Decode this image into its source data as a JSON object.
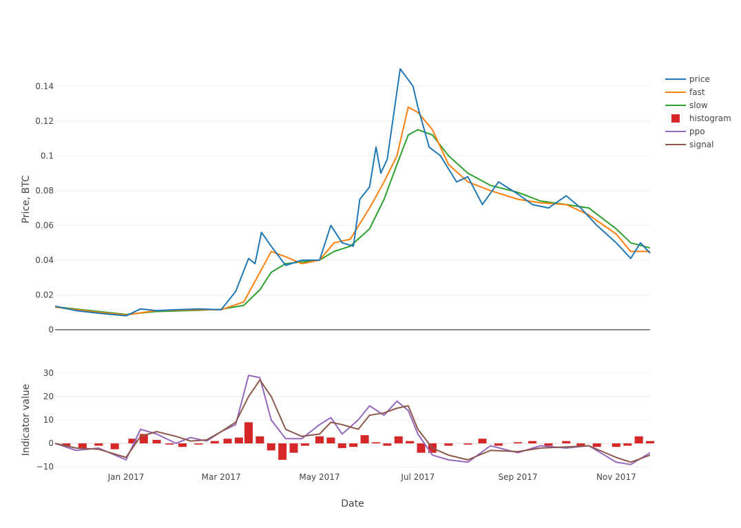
{
  "chart_data": [
    {
      "panel": "price",
      "type": "line",
      "xlabel": "",
      "ylabel": "Price, BTC",
      "ylim": [
        0,
        0.15
      ],
      "y_ticks": [
        0,
        0.02,
        0.04,
        0.06,
        0.08,
        0.1,
        0.12,
        0.14
      ],
      "y_tick_labels": [
        "0",
        "0.02",
        "0.04",
        "0.06",
        "0.08",
        "0.1",
        "0.12",
        "0.14"
      ],
      "grid": true,
      "series": [
        {
          "name": "price",
          "color": "#1f77b4",
          "x": [
            "2016-11-18",
            "2016-12-01",
            "2016-12-15",
            "2017-01-01",
            "2017-01-10",
            "2017-01-20",
            "2017-02-01",
            "2017-02-15",
            "2017-03-01",
            "2017-03-10",
            "2017-03-18",
            "2017-03-22",
            "2017-03-26",
            "2017-04-01",
            "2017-04-10",
            "2017-04-20",
            "2017-05-01",
            "2017-05-08",
            "2017-05-15",
            "2017-05-22",
            "2017-05-26",
            "2017-06-01",
            "2017-06-05",
            "2017-06-08",
            "2017-06-12",
            "2017-06-20",
            "2017-06-28",
            "2017-07-01",
            "2017-07-08",
            "2017-07-15",
            "2017-07-25",
            "2017-08-01",
            "2017-08-10",
            "2017-08-20",
            "2017-09-01",
            "2017-09-10",
            "2017-09-20",
            "2017-10-01",
            "2017-10-10",
            "2017-10-20",
            "2017-11-01",
            "2017-11-10",
            "2017-11-16",
            "2017-11-22"
          ],
          "values": [
            0.0135,
            0.011,
            0.0095,
            0.008,
            0.012,
            0.011,
            0.0115,
            0.012,
            0.0115,
            0.022,
            0.041,
            0.038,
            0.056,
            0.048,
            0.037,
            0.04,
            0.04,
            0.06,
            0.05,
            0.048,
            0.075,
            0.082,
            0.105,
            0.09,
            0.098,
            0.15,
            0.14,
            0.128,
            0.105,
            0.1,
            0.085,
            0.088,
            0.072,
            0.085,
            0.078,
            0.072,
            0.07,
            0.077,
            0.07,
            0.06,
            0.05,
            0.041,
            0.05,
            0.044
          ]
        },
        {
          "name": "fast",
          "color": "#ff7f0e",
          "x": [
            "2016-11-18",
            "2016-12-15",
            "2017-01-01",
            "2017-01-20",
            "2017-02-15",
            "2017-03-01",
            "2017-03-15",
            "2017-03-25",
            "2017-04-01",
            "2017-04-10",
            "2017-04-20",
            "2017-05-01",
            "2017-05-10",
            "2017-05-20",
            "2017-06-01",
            "2017-06-10",
            "2017-06-18",
            "2017-06-25",
            "2017-07-01",
            "2017-07-10",
            "2017-07-20",
            "2017-08-01",
            "2017-08-15",
            "2017-09-01",
            "2017-09-15",
            "2017-10-01",
            "2017-10-15",
            "2017-11-01",
            "2017-11-10",
            "2017-11-22"
          ],
          "values": [
            0.013,
            0.01,
            0.0085,
            0.011,
            0.0115,
            0.0115,
            0.016,
            0.033,
            0.045,
            0.042,
            0.038,
            0.04,
            0.05,
            0.052,
            0.07,
            0.085,
            0.1,
            0.128,
            0.125,
            0.115,
            0.095,
            0.085,
            0.08,
            0.075,
            0.073,
            0.072,
            0.066,
            0.055,
            0.045,
            0.045
          ]
        },
        {
          "name": "slow",
          "color": "#2ca02c",
          "x": [
            "2016-11-18",
            "2016-12-15",
            "2017-01-01",
            "2017-01-20",
            "2017-02-15",
            "2017-03-01",
            "2017-03-15",
            "2017-03-25",
            "2017-04-01",
            "2017-04-10",
            "2017-04-20",
            "2017-05-01",
            "2017-05-10",
            "2017-05-20",
            "2017-06-01",
            "2017-06-10",
            "2017-06-18",
            "2017-06-25",
            "2017-07-01",
            "2017-07-10",
            "2017-07-20",
            "2017-08-01",
            "2017-08-15",
            "2017-09-01",
            "2017-09-15",
            "2017-10-01",
            "2017-10-15",
            "2017-11-01",
            "2017-11-10",
            "2017-11-22"
          ],
          "values": [
            0.0132,
            0.0105,
            0.0088,
            0.0105,
            0.0112,
            0.0118,
            0.014,
            0.023,
            0.033,
            0.038,
            0.039,
            0.04,
            0.045,
            0.048,
            0.058,
            0.075,
            0.095,
            0.112,
            0.115,
            0.112,
            0.1,
            0.09,
            0.083,
            0.079,
            0.074,
            0.072,
            0.07,
            0.058,
            0.05,
            0.047
          ]
        }
      ]
    },
    {
      "panel": "indicator",
      "type": "line",
      "xlabel": "Date",
      "ylabel": "Indicator value",
      "ylim": [
        -12,
        32
      ],
      "y_ticks": [
        -10,
        0,
        10,
        20,
        30
      ],
      "y_tick_labels": [
        "−10",
        "0",
        "10",
        "20",
        "30"
      ],
      "x_ticks": [
        "2017-01-01",
        "2017-03-01",
        "2017-05-01",
        "2017-07-01",
        "2017-09-01",
        "2017-11-01"
      ],
      "x_tick_labels": [
        "Jan 2017",
        "Mar 2017",
        "May 2017",
        "Jul 2017",
        "Sep 2017",
        "Nov 2017"
      ],
      "x_range": [
        "2016-11-18",
        "2017-11-22"
      ],
      "grid": true,
      "series": [
        {
          "name": "ppo",
          "color": "#9467bd",
          "x": [
            "2016-11-18",
            "2016-12-01",
            "2016-12-15",
            "2017-01-01",
            "2017-01-10",
            "2017-01-20",
            "2017-02-01",
            "2017-02-10",
            "2017-02-20",
            "2017-03-01",
            "2017-03-10",
            "2017-03-18",
            "2017-03-25",
            "2017-04-01",
            "2017-04-10",
            "2017-04-20",
            "2017-05-01",
            "2017-05-08",
            "2017-05-15",
            "2017-05-25",
            "2017-06-01",
            "2017-06-10",
            "2017-06-18",
            "2017-06-25",
            "2017-07-01",
            "2017-07-10",
            "2017-07-20",
            "2017-08-01",
            "2017-08-15",
            "2017-09-01",
            "2017-09-15",
            "2017-10-01",
            "2017-10-15",
            "2017-11-01",
            "2017-11-10",
            "2017-11-22"
          ],
          "values": [
            0,
            -3,
            -2,
            -7,
            6,
            4,
            0,
            2.5,
            1,
            5,
            8,
            29,
            28,
            10,
            2,
            2,
            8,
            11,
            4,
            10,
            16,
            12,
            18,
            14,
            4,
            -5,
            -7,
            -8,
            -1,
            -4,
            -1,
            -2,
            -1,
            -8,
            -9,
            -4
          ]
        },
        {
          "name": "signal",
          "color": "#8c564b",
          "x": [
            "2016-11-18",
            "2016-12-01",
            "2016-12-15",
            "2017-01-01",
            "2017-01-10",
            "2017-01-20",
            "2017-02-01",
            "2017-02-10",
            "2017-02-20",
            "2017-03-01",
            "2017-03-10",
            "2017-03-18",
            "2017-03-25",
            "2017-04-01",
            "2017-04-10",
            "2017-04-20",
            "2017-05-01",
            "2017-05-08",
            "2017-05-15",
            "2017-05-25",
            "2017-06-01",
            "2017-06-10",
            "2017-06-18",
            "2017-06-25",
            "2017-07-01",
            "2017-07-10",
            "2017-07-20",
            "2017-08-01",
            "2017-08-15",
            "2017-09-01",
            "2017-09-15",
            "2017-10-01",
            "2017-10-15",
            "2017-11-01",
            "2017-11-10",
            "2017-11-22"
          ],
          "values": [
            0,
            -2,
            -2.5,
            -6,
            3,
            5,
            3,
            1,
            1.5,
            5,
            9,
            20,
            27,
            20,
            6,
            3,
            4,
            9,
            8,
            6,
            12,
            13,
            15,
            16,
            6,
            -2,
            -5,
            -7,
            -3,
            -3.5,
            -2,
            -1.5,
            -1,
            -6,
            -8,
            -5
          ]
        },
        {
          "name": "histogram",
          "color": "#d62728",
          "type": "bar",
          "x": [
            "2016-11-25",
            "2016-12-05",
            "2016-12-15",
            "2016-12-25",
            "2017-01-05",
            "2017-01-12",
            "2017-01-20",
            "2017-01-28",
            "2017-02-05",
            "2017-02-15",
            "2017-02-25",
            "2017-03-05",
            "2017-03-12",
            "2017-03-18",
            "2017-03-25",
            "2017-04-01",
            "2017-04-08",
            "2017-04-15",
            "2017-04-22",
            "2017-05-01",
            "2017-05-08",
            "2017-05-15",
            "2017-05-22",
            "2017-05-29",
            "2017-06-05",
            "2017-06-12",
            "2017-06-19",
            "2017-06-26",
            "2017-07-03",
            "2017-07-10",
            "2017-07-20",
            "2017-08-01",
            "2017-08-10",
            "2017-08-20",
            "2017-09-01",
            "2017-09-10",
            "2017-09-20",
            "2017-10-01",
            "2017-10-10",
            "2017-10-20",
            "2017-11-01",
            "2017-11-08",
            "2017-11-15",
            "2017-11-22"
          ],
          "values": [
            -1,
            -2,
            -1,
            -2.5,
            2,
            4,
            1.5,
            -0.5,
            -1.5,
            -0.5,
            1,
            2,
            2.5,
            9,
            3,
            -3,
            -7,
            -4,
            -1,
            3,
            2.5,
            -2,
            -1.5,
            3.5,
            0.5,
            -1,
            3,
            1,
            -4,
            -4,
            -1,
            -0.5,
            2,
            -1,
            0.5,
            1,
            -1,
            1,
            -1,
            -1.5,
            -1.5,
            -1,
            3,
            1
          ]
        }
      ]
    }
  ],
  "legend": [
    {
      "name": "price",
      "symbol": "line",
      "color": "#1f77b4"
    },
    {
      "name": "fast",
      "symbol": "line",
      "color": "#ff7f0e"
    },
    {
      "name": "slow",
      "symbol": "line",
      "color": "#2ca02c"
    },
    {
      "name": "histogram",
      "symbol": "square",
      "color": "#d62728"
    },
    {
      "name": "ppo",
      "symbol": "line",
      "color": "#9467bd"
    },
    {
      "name": "signal",
      "symbol": "line",
      "color": "#8c564b"
    }
  ],
  "legend_position": "top-right",
  "colors": {
    "grid": "#eeeeee",
    "zeroline": "#888888"
  }
}
